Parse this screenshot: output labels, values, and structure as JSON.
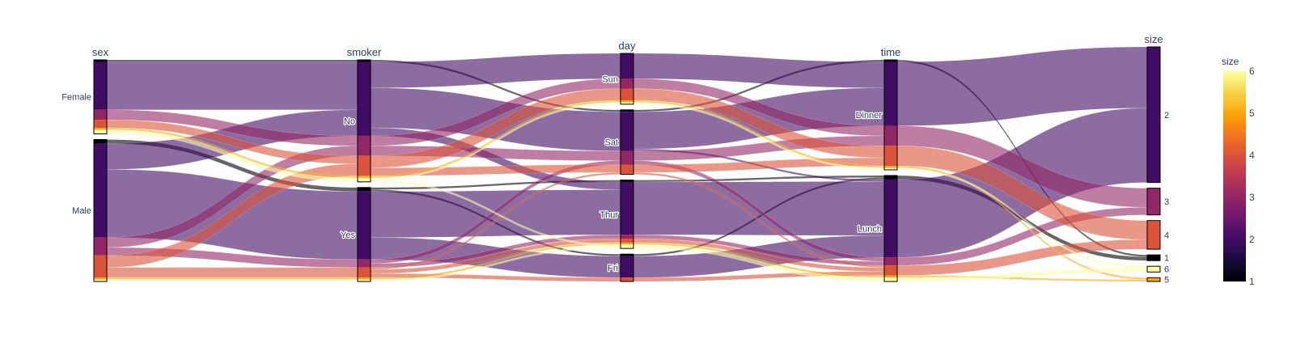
{
  "chart_data": {
    "type": "parallel_categories",
    "dimensions": [
      {
        "name": "sex",
        "categories": [
          {
            "label": "Female",
            "counts": {
              "1": 1,
              "2": 24,
              "3": 5,
              "4": 4,
              "5": 1,
              "6": 2
            }
          },
          {
            "label": "Male",
            "counts": {
              "1": 2,
              "2": 47,
              "3": 9,
              "4": 11,
              "5": 1,
              "6": 1
            }
          }
        ]
      },
      {
        "name": "smoker",
        "categories": [
          {
            "label": "No",
            "counts": {
              "1": 1,
              "2": 37,
              "3": 10,
              "4": 10,
              "5": 1,
              "6": 2
            }
          },
          {
            "label": "Yes",
            "counts": {
              "1": 2,
              "2": 34,
              "3": 4,
              "4": 5,
              "5": 1,
              "6": 1
            }
          }
        ]
      },
      {
        "name": "day",
        "categories": [
          {
            "label": "Sun",
            "counts": {
              "1": 0,
              "2": 13,
              "3": 5,
              "4": 6,
              "5": 1,
              "6": 1
            }
          },
          {
            "label": "Sat",
            "counts": {
              "1": 1,
              "2": 20,
              "3": 7,
              "4": 5,
              "5": 0,
              "6": 0
            }
          },
          {
            "label": "Thur",
            "counts": {
              "1": 1,
              "2": 27,
              "3": 2,
              "4": 2,
              "5": 1,
              "6": 2
            }
          },
          {
            "label": "Fri",
            "counts": {
              "1": 1,
              "2": 11,
              "3": 0,
              "4": 2,
              "5": 0,
              "6": 0
            }
          }
        ]
      },
      {
        "name": "time",
        "categories": [
          {
            "label": "Dinner",
            "counts": {
              "1": 1,
              "2": 32,
              "3": 10,
              "4": 10,
              "5": 1,
              "6": 1
            }
          },
          {
            "label": "Lunch",
            "counts": {
              "1": 2,
              "2": 39,
              "3": 4,
              "4": 5,
              "5": 1,
              "6": 2
            }
          }
        ]
      },
      {
        "name": "size",
        "categories": [
          {
            "label": "2",
            "counts": {
              "2": 71
            }
          },
          {
            "label": "3",
            "counts": {
              "3": 14
            }
          },
          {
            "label": "4",
            "counts": {
              "4": 15
            }
          },
          {
            "label": "1",
            "counts": {
              "1": 3
            }
          },
          {
            "label": "6",
            "counts": {
              "6": 3
            }
          },
          {
            "label": "5",
            "counts": {
              "5": 2
            }
          }
        ]
      }
    ],
    "color_variable": "size",
    "colorscale": "Inferno",
    "colorscale_colors": [
      "#000004",
      "#1b0c41",
      "#4a0c6b",
      "#781c6d",
      "#a52c60",
      "#cf4446",
      "#ed6925",
      "#fb9b06",
      "#f7d13d",
      "#fcffa4"
    ],
    "colorbar": {
      "title": "size",
      "range": [
        1,
        6
      ],
      "tick_labels": [
        "1",
        "2",
        "3",
        "4",
        "5",
        "6"
      ],
      "placement": "right"
    }
  }
}
